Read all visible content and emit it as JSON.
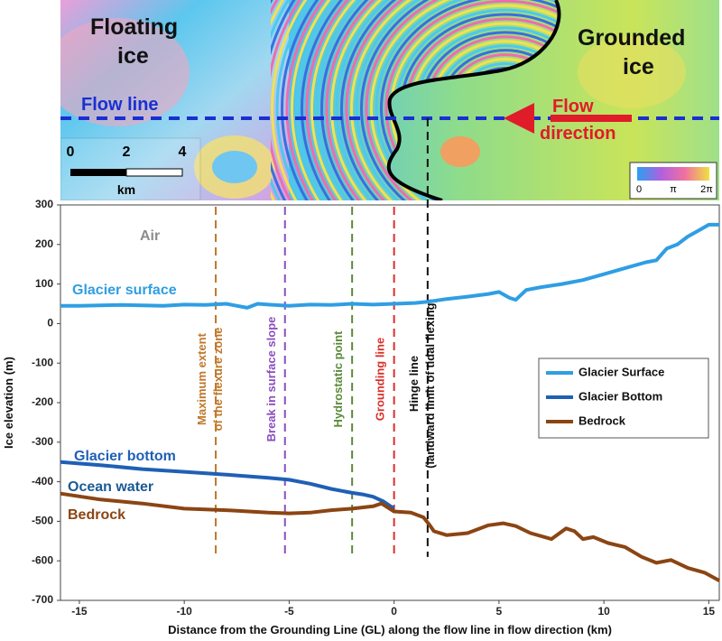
{
  "chart_data": {
    "type": "line",
    "xlabel": "Distance from the Grounding Line (GL) along the flow line in flow direction (km)",
    "ylabel": "Ice elevation (m)",
    "xlim": [
      -15.9,
      15.5
    ],
    "ylim": [
      -700,
      300
    ],
    "xticks": [
      -15,
      -10,
      -5,
      0,
      5,
      10,
      15
    ],
    "yticks": [
      300,
      200,
      100,
      0,
      -100,
      -200,
      -300,
      -400,
      -500,
      -600,
      -700
    ],
    "legend": "right",
    "series": [
      {
        "name": "Glacier Surface",
        "color": "#2f9ee3",
        "x": [
          -15.9,
          -15,
          -13,
          -11,
          -10,
          -9,
          -8,
          -7.5,
          -7,
          -6.5,
          -6,
          -5,
          -4,
          -3,
          -2,
          -1,
          0,
          1,
          1.6,
          2.5,
          3.5,
          4.5,
          5,
          5.5,
          5.8,
          6.3,
          7,
          8,
          9,
          10,
          11,
          12,
          12.5,
          13,
          13.5,
          14,
          14.5,
          15,
          15.5
        ],
        "values": [
          45,
          45,
          47,
          45,
          48,
          47,
          50,
          45,
          40,
          50,
          48,
          45,
          48,
          47,
          50,
          48,
          50,
          52,
          55,
          62,
          68,
          75,
          80,
          65,
          60,
          85,
          92,
          100,
          110,
          125,
          140,
          155,
          160,
          190,
          200,
          220,
          235,
          250,
          250
        ]
      },
      {
        "name": "Glacier Bottom",
        "color": "#1f60b5",
        "x": [
          -15.9,
          -14,
          -12,
          -10,
          -8,
          -6,
          -5,
          -4,
          -3,
          -2,
          -1.5,
          -1,
          -0.5,
          0
        ],
        "values": [
          -350,
          -358,
          -368,
          -375,
          -382,
          -390,
          -395,
          -405,
          -418,
          -428,
          -432,
          -438,
          -450,
          -468
        ]
      },
      {
        "name": "Bedrock",
        "color": "#8b4513",
        "x": [
          -15.9,
          -14,
          -12,
          -10,
          -8,
          -6,
          -5,
          -4,
          -3,
          -2,
          -1,
          -0.6,
          0,
          0.8,
          1.4,
          1.7,
          1.9,
          2.5,
          3.5,
          4.5,
          5.2,
          5.8,
          6.5,
          7.5,
          8.2,
          8.6,
          9,
          9.5,
          10.2,
          11,
          11.8,
          12.5,
          13.2,
          14,
          14.8,
          15.5
        ],
        "values": [
          -430,
          -445,
          -455,
          -468,
          -472,
          -478,
          -480,
          -478,
          -472,
          -468,
          -462,
          -455,
          -475,
          -478,
          -490,
          -510,
          -525,
          -535,
          -530,
          -510,
          -505,
          -512,
          -530,
          -545,
          -518,
          -525,
          -545,
          -540,
          -555,
          -565,
          -590,
          -605,
          -598,
          -618,
          -630,
          -650
        ]
      }
    ],
    "vlines": [
      {
        "x": -8.5,
        "color": "#c0772a",
        "label": [
          "Maximum extent",
          "of the flexure zone"
        ]
      },
      {
        "x": -5.2,
        "color": "#8a4fbf",
        "label": [
          "Break in surface slope"
        ]
      },
      {
        "x": -2,
        "color": "#5a8a3a",
        "label": [
          "Hydrostatic point"
        ]
      },
      {
        "x": 0,
        "color": "#d9302a",
        "label": [
          "Grounding line"
        ]
      },
      {
        "x": 1.6,
        "color": "#111111",
        "label": [
          "Hinge line",
          "(landward limit of tidal flexing)"
        ]
      }
    ],
    "annotations": [
      {
        "text": "Air",
        "color": "#8c8c8c"
      },
      {
        "text": "Glacier surface",
        "color": "#2f9ee3"
      },
      {
        "text": "Glacier bottom",
        "color": "#1f60b5"
      },
      {
        "text": "Ocean water",
        "color": "#1a5a95"
      },
      {
        "text": "Bedrock",
        "color": "#8b4513"
      }
    ]
  },
  "image": {
    "floating": [
      "Floating",
      "ice"
    ],
    "grounded": [
      "Grounded",
      "ice"
    ],
    "flow_line": "Flow line",
    "flow_direction": [
      "Flow",
      "direction"
    ],
    "scale_ticks": [
      "0",
      "2",
      "4"
    ],
    "scale_unit": "km",
    "colorbar_ticks": [
      "0",
      "π",
      "2π"
    ]
  }
}
